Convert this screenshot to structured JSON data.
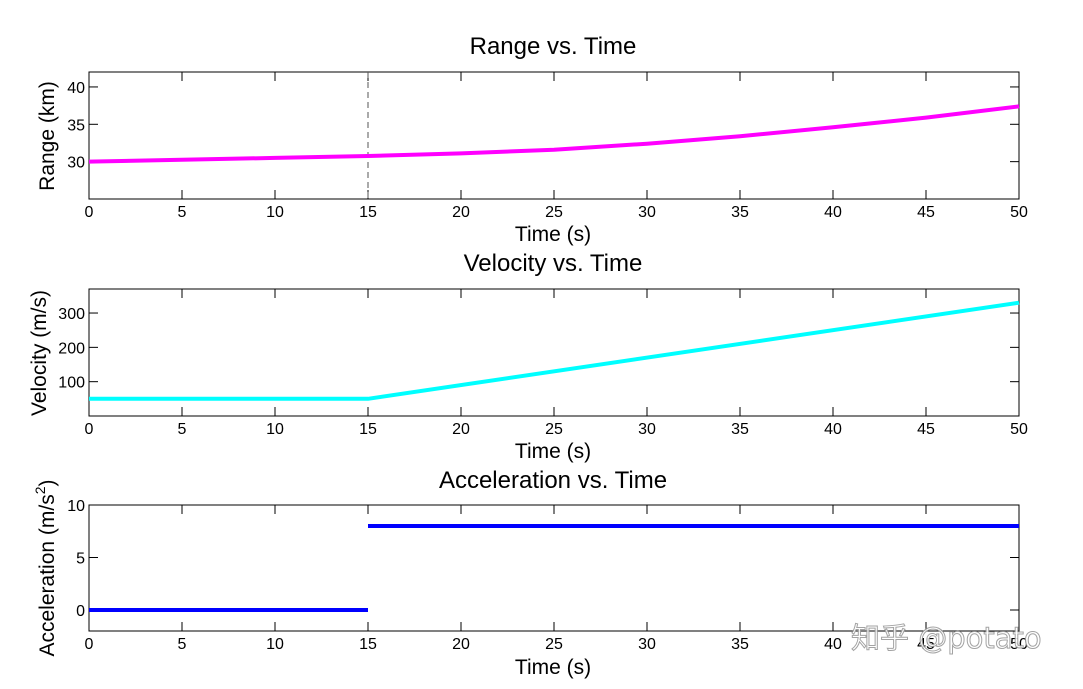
{
  "chart_data": [
    {
      "type": "line",
      "title": "Range vs. Time",
      "xlabel": "Time (s)",
      "ylabel": "Range (km)",
      "xlim": [
        0,
        50
      ],
      "ylim": [
        25,
        42
      ],
      "xticks": [
        0,
        5,
        10,
        15,
        20,
        25,
        30,
        35,
        40,
        45,
        50
      ],
      "yticks": [
        30,
        35,
        40
      ],
      "grid": false,
      "marker_line_x": 15,
      "series": [
        {
          "name": "Range",
          "color": "#ff00ff",
          "x": [
            0,
            5,
            10,
            15,
            20,
            25,
            30,
            35,
            40,
            45,
            50
          ],
          "y": [
            30.0,
            30.25,
            30.5,
            30.75,
            31.1,
            31.6,
            32.4,
            33.4,
            34.6,
            35.9,
            37.4
          ]
        }
      ]
    },
    {
      "type": "line",
      "title": "Velocity vs. Time",
      "xlabel": "Time (s)",
      "ylabel": "Velocity (m/s)",
      "xlim": [
        0,
        50
      ],
      "ylim": [
        0,
        370
      ],
      "xticks": [
        0,
        5,
        10,
        15,
        20,
        25,
        30,
        35,
        40,
        45,
        50
      ],
      "yticks": [
        100,
        200,
        300
      ],
      "grid": false,
      "series": [
        {
          "name": "Velocity",
          "color": "#00ffff",
          "x": [
            0,
            15,
            50
          ],
          "y": [
            50,
            50,
            330
          ]
        }
      ]
    },
    {
      "type": "line",
      "title": "Acceleration vs. Time",
      "xlabel": "Time (s)",
      "ylabel": "Acceleration (m/s",
      "ylabel_sup": "2",
      "ylabel_close": ")",
      "xlim": [
        0,
        50
      ],
      "ylim": [
        -2,
        10
      ],
      "xticks": [
        0,
        5,
        10,
        15,
        20,
        25,
        30,
        35,
        40,
        45,
        50
      ],
      "yticks": [
        0,
        5,
        10
      ],
      "grid": false,
      "series": [
        {
          "name": "Acceleration",
          "color": "#0000ff",
          "segments": [
            {
              "x": [
                0,
                15
              ],
              "y": [
                0,
                0
              ]
            },
            {
              "x": [
                15,
                50
              ],
              "y": [
                8,
                8
              ]
            }
          ]
        }
      ]
    }
  ],
  "watermark": "知乎 @potato"
}
